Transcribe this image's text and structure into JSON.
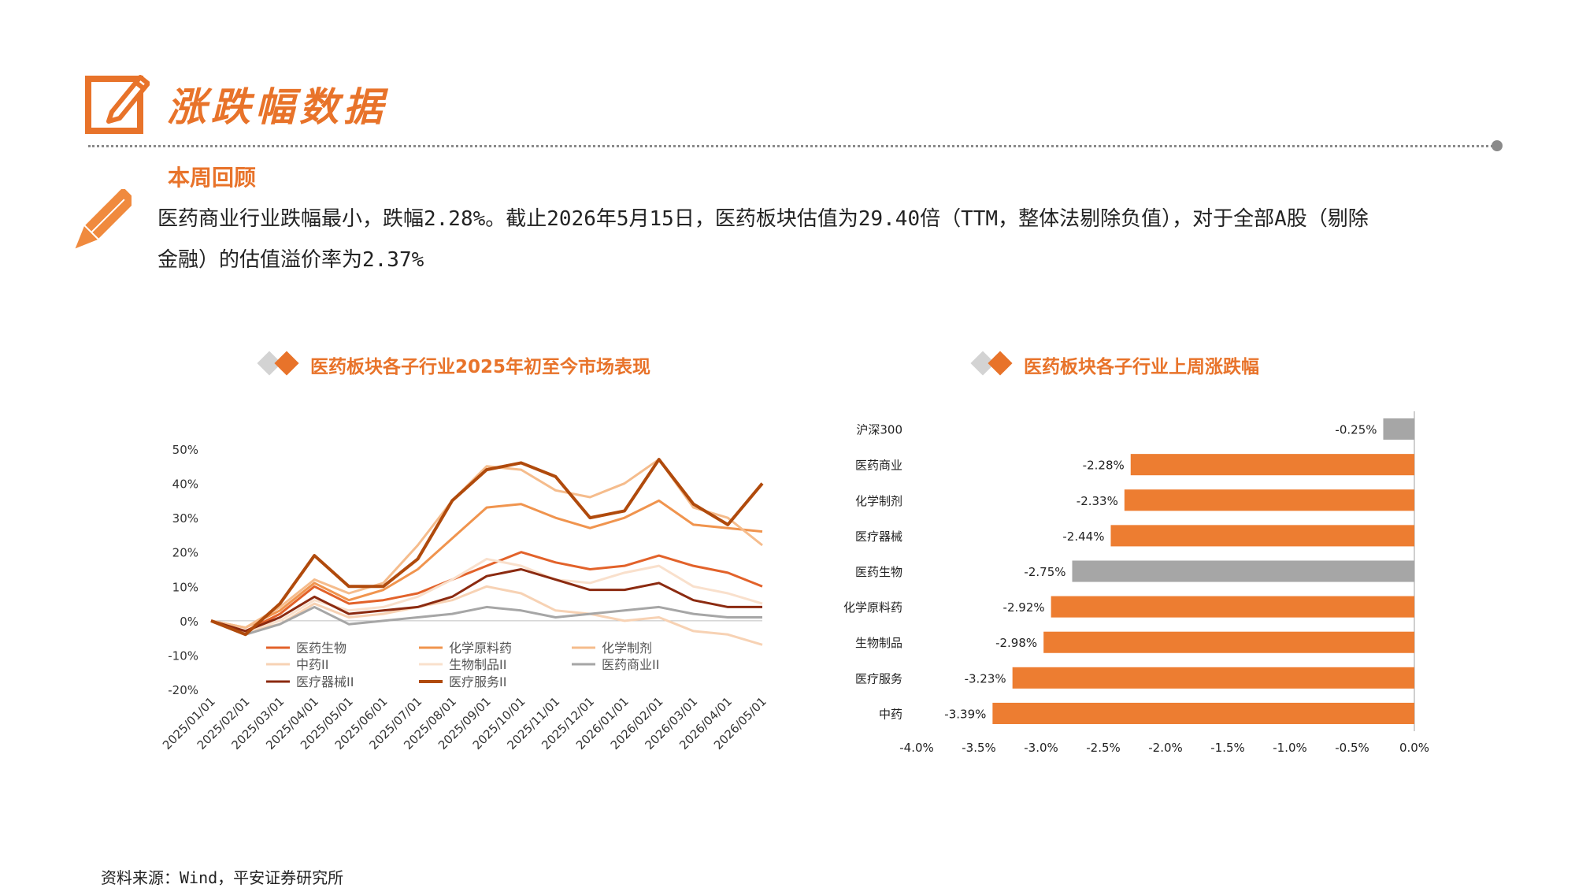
{
  "header": {
    "title": "涨跌幅数据",
    "section": "本周回顾",
    "summary_line1": "医药商业行业跌幅最小，跌幅2.28%。截止2026年5月15日，医药板块估值为29.40倍（TTM，整体法剔除负值），对于全部A股（剔除",
    "summary_line2": "金融）的估值溢价率为2.37%"
  },
  "colors": {
    "accent": "#E8732A",
    "grey_bar": "#A6A6A6",
    "divider": "#8a8a8a"
  },
  "left_chart": {
    "title": "医药板块各子行业2025年初至今市场表现"
  },
  "right_chart": {
    "title": "医药板块各子行业上周涨跌幅"
  },
  "footer": {
    "source": "资料来源：Wind，平安证券研究所"
  },
  "chart_data": [
    {
      "type": "line",
      "ylim": [
        -20,
        50
      ],
      "y_ticks": [
        "50%",
        "40%",
        "30%",
        "20%",
        "10%",
        "0%",
        "-10%",
        "-20%"
      ],
      "x_ticks": [
        "2025/01/01",
        "2025/02/01",
        "2025/03/01",
        "2025/04/01",
        "2025/05/01",
        "2025/06/01",
        "2025/07/01",
        "2025/08/01",
        "2025/09/01",
        "2025/10/01",
        "2025/11/01",
        "2025/12/01",
        "2026/01/01",
        "2026/02/01",
        "2026/03/01",
        "2026/04/01",
        "2026/05/01"
      ],
      "legend_placement": "bottom-left",
      "series": [
        {
          "name": "医药生物",
          "color": "#E2622A",
          "width": 3,
          "values": [
            0,
            -3,
            2,
            10,
            5,
            6,
            8,
            12,
            16,
            20,
            17,
            15,
            16,
            19,
            16,
            14,
            10
          ]
        },
        {
          "name": "化学原料药",
          "color": "#F0944E",
          "width": 3,
          "values": [
            0,
            -2,
            3,
            11,
            6,
            9,
            15,
            24,
            33,
            34,
            30,
            27,
            30,
            35,
            28,
            27,
            26
          ]
        },
        {
          "name": "化学制剂",
          "color": "#F5BC8C",
          "width": 3,
          "values": [
            0,
            -2,
            4,
            12,
            8,
            11,
            22,
            35,
            45,
            44,
            38,
            36,
            40,
            47,
            33,
            30,
            22
          ]
        },
        {
          "name": "中药II",
          "color": "#F7D2B4",
          "width": 3,
          "values": [
            0,
            -3,
            -1,
            5,
            1,
            2,
            4,
            6,
            10,
            8,
            3,
            2,
            0,
            1,
            -3,
            -4,
            -7
          ]
        },
        {
          "name": "生物制品II",
          "color": "#F9E0CC",
          "width": 3,
          "values": [
            0,
            -3,
            0,
            6,
            3,
            4,
            7,
            12,
            18,
            16,
            12,
            11,
            14,
            16,
            10,
            8,
            5
          ]
        },
        {
          "name": "医药商业II",
          "color": "#A6A6A6",
          "width": 3,
          "values": [
            0,
            -4,
            -1,
            4,
            -1,
            0,
            1,
            2,
            4,
            3,
            1,
            2,
            3,
            4,
            2,
            1,
            1
          ]
        },
        {
          "name": "医疗器械II",
          "color": "#8B2A10",
          "width": 3,
          "values": [
            0,
            -3,
            1,
            7,
            2,
            3,
            4,
            7,
            13,
            15,
            12,
            9,
            9,
            11,
            6,
            4,
            4
          ]
        },
        {
          "name": "医疗服务II",
          "color": "#B04A0C",
          "width": 4,
          "values": [
            0,
            -4,
            5,
            19,
            10,
            10,
            18,
            35,
            44,
            46,
            42,
            30,
            32,
            47,
            34,
            28,
            40
          ]
        }
      ]
    },
    {
      "type": "bar",
      "orientation": "horizontal",
      "xlim": [
        -4.0,
        0.0
      ],
      "x_ticks": [
        "-4.0%",
        "-3.5%",
        "-3.0%",
        "-2.5%",
        "-2.0%",
        "-1.5%",
        "-1.0%",
        "-0.5%",
        "0.0%"
      ],
      "categories": [
        "沪深300",
        "医药商业",
        "化学制剂",
        "医疗器械",
        "医药生物",
        "化学原料药",
        "生物制品",
        "医疗服务",
        "中药"
      ],
      "values": [
        -0.25,
        -2.28,
        -2.33,
        -2.44,
        -2.75,
        -2.92,
        -2.98,
        -3.23,
        -3.39
      ],
      "labels": [
        "-0.25%",
        "-2.28%",
        "-2.33%",
        "-2.44%",
        "-2.75%",
        "-2.92%",
        "-2.98%",
        "-3.23%",
        "-3.39%"
      ],
      "bar_colors": [
        "#A6A6A6",
        "#ED7D31",
        "#ED7D31",
        "#ED7D31",
        "#A6A6A6",
        "#ED7D31",
        "#ED7D31",
        "#ED7D31",
        "#ED7D31"
      ]
    }
  ]
}
